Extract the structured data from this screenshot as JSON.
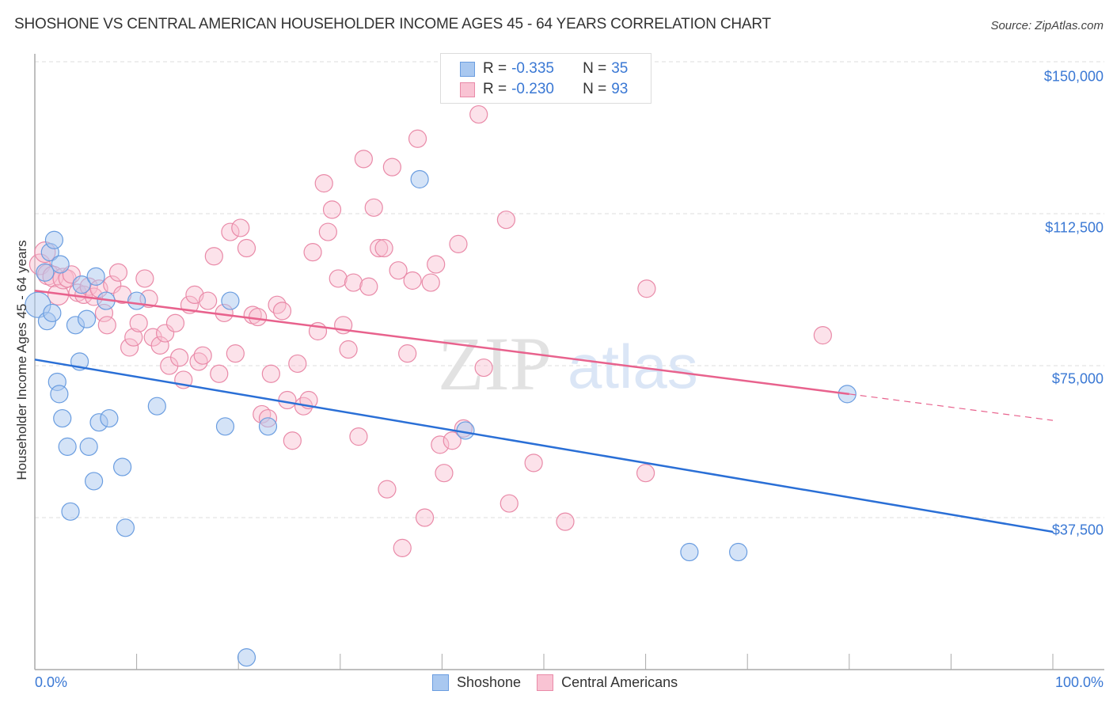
{
  "header": {
    "title": "SHOSHONE VS CENTRAL AMERICAN HOUSEHOLDER INCOME AGES 45 - 64 YEARS CORRELATION CHART",
    "source": "Source: ZipAtlas.com"
  },
  "legend_top": {
    "rows": [
      {
        "r_label": "R =",
        "r_value": "-0.335",
        "n_label": "N =",
        "n_value": "35",
        "color": "#a9c8f0",
        "border": "#6a9de0"
      },
      {
        "r_label": "R =",
        "r_value": "-0.230",
        "n_label": "N =",
        "n_value": "93",
        "color": "#f9c3d3",
        "border": "#e98aa8"
      }
    ]
  },
  "legend_bottom": {
    "items": [
      {
        "label": "Shoshone",
        "color": "#a9c8f0",
        "border": "#6a9de0"
      },
      {
        "label": "Central Americans",
        "color": "#f9c3d3",
        "border": "#e98aa8"
      }
    ]
  },
  "axes": {
    "y_label": "Householder Income Ages 45 - 64 years",
    "y_ticks": [
      "$150,000",
      "$112,500",
      "$75,000",
      "$37,500"
    ],
    "x_ticks": [
      "0.0%",
      "100.0%"
    ]
  },
  "watermark": {
    "zip": "ZIP",
    "atlas": "atlas"
  },
  "chart_data": {
    "type": "scatter",
    "title": "SHOSHONE VS CENTRAL AMERICAN HOUSEHOLDER INCOME AGES 45 - 64 YEARS CORRELATION CHART",
    "xlabel": "",
    "ylabel": "Householder Income Ages 45 - 64 years",
    "xlim": [
      0,
      100
    ],
    "ylim": [
      0,
      155000
    ],
    "grid": true,
    "legend_position": "top-center and bottom",
    "series": [
      {
        "name": "Shoshone",
        "color": "#6a9de0",
        "R": -0.335,
        "N": 35,
        "trend": {
          "x": [
            0,
            100
          ],
          "y": [
            76500,
            34000
          ]
        },
        "points": [
          [
            0.3,
            90000
          ],
          [
            1.0,
            98000
          ],
          [
            1.2,
            86000
          ],
          [
            1.5,
            103000
          ],
          [
            1.7,
            88000
          ],
          [
            1.9,
            106000
          ],
          [
            2.2,
            71000
          ],
          [
            2.4,
            68000
          ],
          [
            2.5,
            100000
          ],
          [
            2.7,
            62000
          ],
          [
            3.2,
            55000
          ],
          [
            3.5,
            39000
          ],
          [
            4.0,
            85000
          ],
          [
            4.4,
            76000
          ],
          [
            4.6,
            95000
          ],
          [
            5.1,
            86500
          ],
          [
            5.3,
            55000
          ],
          [
            5.8,
            46500
          ],
          [
            6.0,
            97000
          ],
          [
            6.3,
            61000
          ],
          [
            7.0,
            91000
          ],
          [
            7.3,
            62000
          ],
          [
            8.6,
            50000
          ],
          [
            8.9,
            35000
          ],
          [
            10.0,
            91000
          ],
          [
            12.0,
            65000
          ],
          [
            18.7,
            60000
          ],
          [
            19.2,
            91000
          ],
          [
            20.8,
            3000
          ],
          [
            22.9,
            60000
          ],
          [
            37.8,
            121000
          ],
          [
            42.3,
            59000
          ],
          [
            64.3,
            29000
          ],
          [
            69.1,
            29000
          ],
          [
            79.8,
            68000
          ]
        ]
      },
      {
        "name": "Central Americans",
        "color": "#e98aa8",
        "R": -0.23,
        "N": 93,
        "trend": {
          "x": [
            0,
            80
          ],
          "y": [
            93500,
            68000
          ],
          "dashed_extension": {
            "x": [
              80,
              100
            ],
            "y": [
              68000,
              61500
            ]
          }
        },
        "points": [
          [
            0.5,
            100000
          ],
          [
            1.0,
            103000
          ],
          [
            1.3,
            97500
          ],
          [
            1.8,
            97000
          ],
          [
            2.3,
            92500
          ],
          [
            2.8,
            96500
          ],
          [
            3.2,
            96500
          ],
          [
            3.6,
            97500
          ],
          [
            4.2,
            93000
          ],
          [
            4.8,
            92500
          ],
          [
            5.3,
            94500
          ],
          [
            5.8,
            92000
          ],
          [
            6.3,
            94000
          ],
          [
            6.8,
            88000
          ],
          [
            7.1,
            85000
          ],
          [
            7.6,
            95000
          ],
          [
            8.2,
            98000
          ],
          [
            8.6,
            92500
          ],
          [
            9.3,
            79500
          ],
          [
            9.7,
            82000
          ],
          [
            10.2,
            85500
          ],
          [
            10.8,
            96500
          ],
          [
            11.2,
            91500
          ],
          [
            11.6,
            82000
          ],
          [
            12.3,
            80000
          ],
          [
            12.8,
            83000
          ],
          [
            13.2,
            75000
          ],
          [
            13.8,
            85500
          ],
          [
            14.2,
            77000
          ],
          [
            14.6,
            71500
          ],
          [
            15.2,
            90000
          ],
          [
            15.7,
            92500
          ],
          [
            16.1,
            76000
          ],
          [
            16.5,
            77500
          ],
          [
            17.0,
            91000
          ],
          [
            17.6,
            102000
          ],
          [
            18.1,
            73000
          ],
          [
            18.6,
            88000
          ],
          [
            19.2,
            108000
          ],
          [
            19.7,
            78000
          ],
          [
            20.2,
            109000
          ],
          [
            20.8,
            104000
          ],
          [
            21.4,
            87500
          ],
          [
            21.9,
            87000
          ],
          [
            22.3,
            63000
          ],
          [
            22.9,
            62000
          ],
          [
            23.2,
            73000
          ],
          [
            23.8,
            90000
          ],
          [
            24.3,
            88500
          ],
          [
            24.8,
            66500
          ],
          [
            25.3,
            56500
          ],
          [
            25.8,
            75500
          ],
          [
            26.4,
            65000
          ],
          [
            26.9,
            66500
          ],
          [
            27.3,
            103000
          ],
          [
            27.8,
            83500
          ],
          [
            28.4,
            120000
          ],
          [
            28.8,
            108000
          ],
          [
            29.2,
            113500
          ],
          [
            29.8,
            96500
          ],
          [
            30.3,
            85000
          ],
          [
            30.8,
            79000
          ],
          [
            31.3,
            95500
          ],
          [
            31.8,
            57500
          ],
          [
            32.3,
            126000
          ],
          [
            32.8,
            94500
          ],
          [
            33.3,
            114000
          ],
          [
            33.8,
            104000
          ],
          [
            34.3,
            104000
          ],
          [
            34.6,
            44500
          ],
          [
            35.1,
            124000
          ],
          [
            35.7,
            98500
          ],
          [
            36.1,
            30000
          ],
          [
            36.6,
            78000
          ],
          [
            37.1,
            96000
          ],
          [
            37.6,
            131000
          ],
          [
            38.3,
            37500
          ],
          [
            38.9,
            95500
          ],
          [
            39.4,
            100000
          ],
          [
            39.8,
            55500
          ],
          [
            40.2,
            48500
          ],
          [
            41.0,
            56500
          ],
          [
            41.6,
            105000
          ],
          [
            42.1,
            59500
          ],
          [
            43.6,
            137000
          ],
          [
            44.1,
            74500
          ],
          [
            46.3,
            111000
          ],
          [
            46.6,
            41000
          ],
          [
            49.0,
            51000
          ],
          [
            52.1,
            36500
          ],
          [
            60.1,
            94000
          ],
          [
            60.0,
            48500
          ],
          [
            77.4,
            82500
          ]
        ]
      }
    ]
  }
}
